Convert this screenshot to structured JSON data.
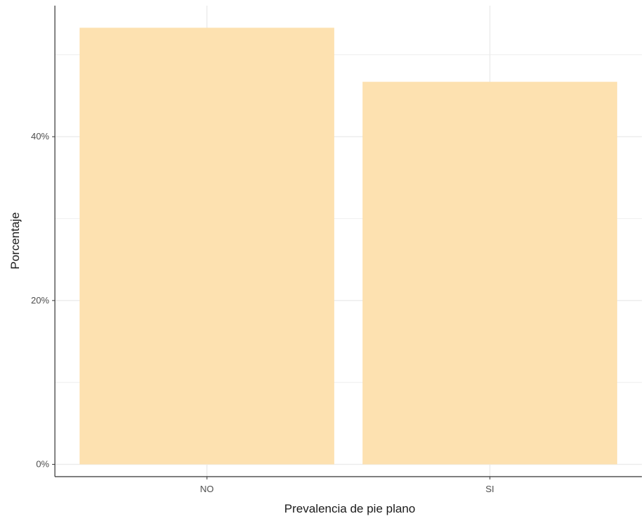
{
  "chart_data": {
    "type": "bar",
    "categories": [
      "NO",
      "SI"
    ],
    "values": [
      53.3,
      46.7
    ],
    "xlabel": "Prevalencia de pie plano",
    "ylabel": "Porcentaje",
    "ylim": [
      -1.5,
      56
    ],
    "y_ticks": [
      0,
      20,
      40
    ],
    "y_tick_labels": [
      "0%",
      "20%",
      "40%"
    ],
    "grid": true,
    "bar_color": "#fde1b0",
    "grid_color": "#ebebeb"
  }
}
